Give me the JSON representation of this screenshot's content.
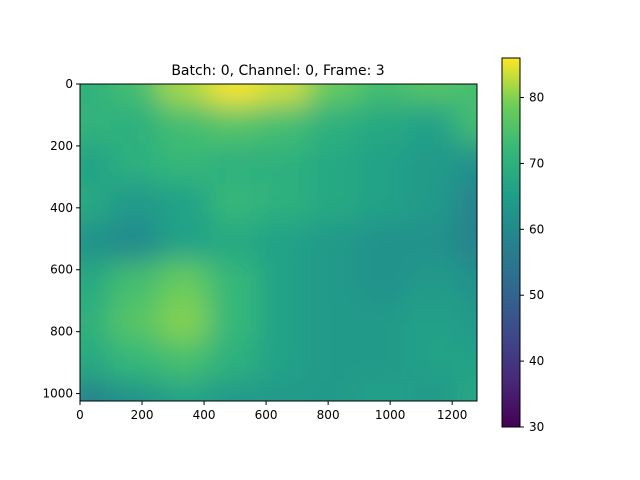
{
  "chart_data": {
    "type": "heatmap",
    "title": "Batch: 0, Channel: 0, Frame: 3",
    "xlabel": "",
    "ylabel": "",
    "xlim": [
      0,
      1280
    ],
    "ylim": [
      1024,
      0
    ],
    "x_ticks": [
      0,
      200,
      400,
      600,
      800,
      1000,
      1200
    ],
    "y_ticks": [
      0,
      200,
      400,
      600,
      800,
      1000
    ],
    "colorbar": {
      "range": [
        30,
        86
      ],
      "ticks": [
        30,
        40,
        50,
        60,
        70,
        80
      ],
      "colormap": "viridis"
    },
    "grid_x_step": 160,
    "grid_y_step": 128,
    "z": [
      [
        70,
        74,
        82,
        86,
        84,
        78,
        74,
        76,
        74,
        72
      ],
      [
        71,
        70,
        74,
        76,
        74,
        70,
        68,
        66,
        74,
        64
      ],
      [
        66,
        70,
        72,
        70,
        70,
        68,
        66,
        64,
        62,
        62
      ],
      [
        68,
        64,
        66,
        72,
        70,
        68,
        66,
        64,
        58,
        56
      ],
      [
        62,
        60,
        66,
        68,
        66,
        64,
        62,
        62,
        58,
        56
      ],
      [
        68,
        74,
        78,
        72,
        66,
        64,
        62,
        64,
        62,
        60
      ],
      [
        70,
        76,
        80,
        72,
        66,
        64,
        64,
        66,
        64,
        62
      ],
      [
        68,
        72,
        74,
        70,
        66,
        64,
        64,
        66,
        66,
        64
      ],
      [
        58,
        62,
        66,
        64,
        64,
        64,
        66,
        64,
        68,
        66
      ]
    ]
  }
}
